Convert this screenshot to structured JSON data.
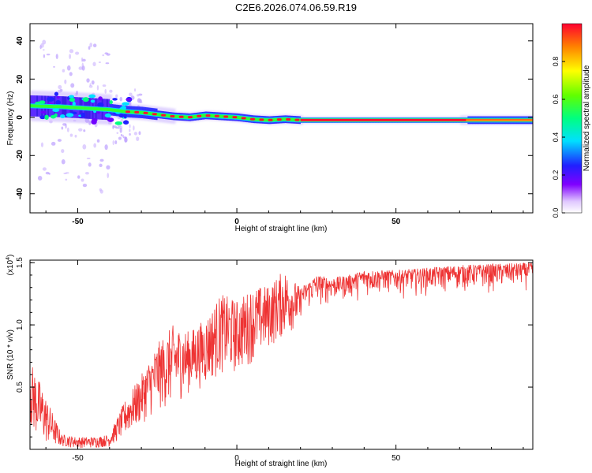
{
  "title": "C2E6.2026.074.06.59.R19",
  "chart_data": [
    {
      "type": "heatmap",
      "name": "spectrogram",
      "xlabel": "Height of straight line (km)",
      "ylabel": "Frequency (Hz)",
      "xlim": [
        -65,
        93
      ],
      "ylim": [
        -50,
        49
      ],
      "xticks": [
        -50,
        0,
        50
      ],
      "yticks": [
        -40,
        -20,
        0,
        20,
        40
      ],
      "colorbar": {
        "label": "Normalized spectral amplitude",
        "range": [
          0,
          1
        ],
        "ticks": [
          "0.0",
          "0.2",
          "0.4",
          "0.6",
          "0.8"
        ]
      },
      "ridge": {
        "x": [
          -65,
          -55,
          -50,
          -45,
          -40,
          -35,
          -30,
          -25,
          -20,
          -15,
          -10,
          -5,
          0,
          5,
          10,
          15,
          20,
          30,
          40,
          50,
          60,
          70,
          80,
          93
        ],
        "y": [
          6,
          5.5,
          5,
          4.5,
          4,
          3,
          2.5,
          1.5,
          0.5,
          0,
          1,
          0.5,
          0,
          -1,
          -1.5,
          -1,
          -1.5,
          -1.5,
          -1.5,
          -1.5,
          -1.5,
          -1.5,
          -1.5,
          -1.5
        ]
      }
    },
    {
      "type": "line",
      "name": "snr",
      "xlabel": "Height of straight line (km)",
      "ylabel": "SNR (10 * v/v)",
      "scale_label": "(x10",
      "scale_exponent": "4",
      "xlim": [
        -65,
        93
      ],
      "ylim": [
        0,
        1.52
      ],
      "xticks": [
        -50,
        0,
        50
      ],
      "ytick_values": [
        0.5,
        1.0,
        1.5
      ],
      "ytick_labels": [
        "0.5",
        "1.0",
        "1.5"
      ],
      "color": "#ee3333",
      "envelope": {
        "x": [
          -65,
          -62,
          -58,
          -55,
          -50,
          -45,
          -40,
          -35,
          -30,
          -25,
          -20,
          -15,
          -10,
          -5,
          0,
          5,
          10,
          15,
          20,
          25,
          30,
          35,
          40,
          50,
          60,
          70,
          80,
          93
        ],
        "hi": [
          0.72,
          0.55,
          0.3,
          0.12,
          0.1,
          0.1,
          0.12,
          0.4,
          0.6,
          0.85,
          1.0,
          0.95,
          1.05,
          1.25,
          1.2,
          1.3,
          1.32,
          1.45,
          1.3,
          1.4,
          1.38,
          1.4,
          1.44,
          1.44,
          1.46,
          1.48,
          1.49,
          1.5
        ],
        "lo": [
          0.15,
          0.05,
          0.02,
          0.02,
          0.01,
          0.01,
          0.02,
          0.1,
          0.2,
          0.3,
          0.35,
          0.45,
          0.5,
          0.6,
          0.6,
          0.7,
          0.8,
          0.9,
          1.0,
          1.08,
          1.12,
          1.15,
          1.18,
          1.2,
          1.2,
          1.22,
          1.22,
          1.25
        ]
      }
    }
  ]
}
